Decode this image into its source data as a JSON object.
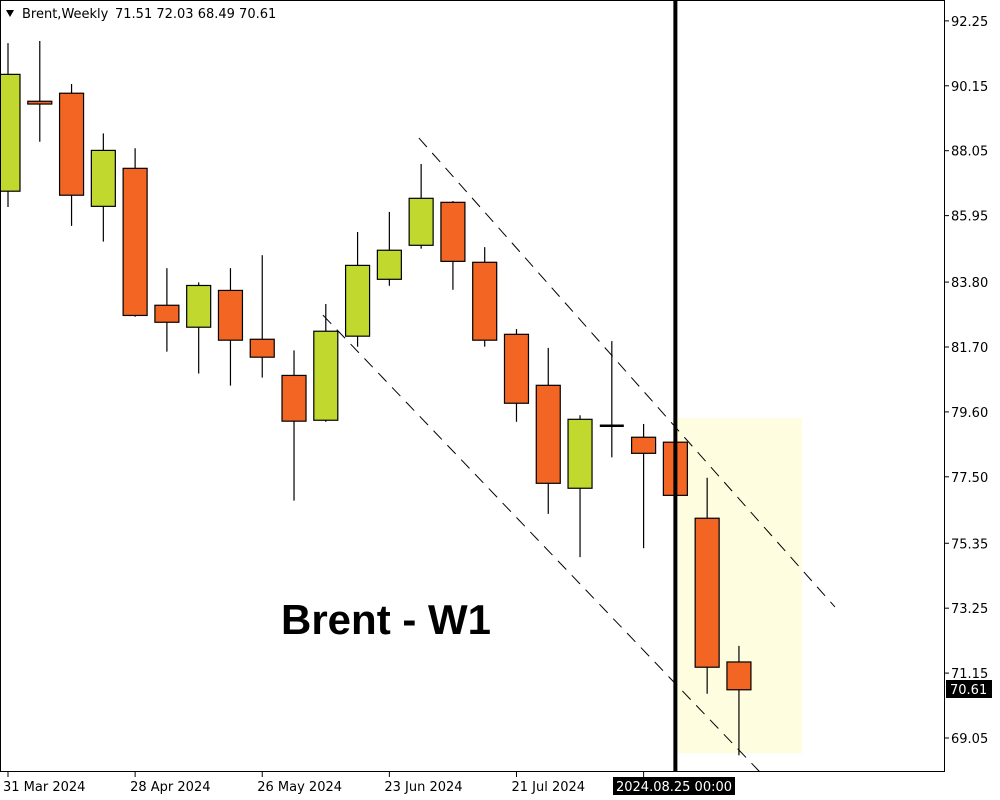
{
  "header": {
    "menu_icon": "triangle-down-icon",
    "symbol_label": "Brent,Weekly",
    "ohlc_text": "71.51 72.03 68.49 70.61"
  },
  "annotation_text": "Brent - W1",
  "current_price_label": "70.61",
  "vline_label": "2024.08.25 00:00",
  "colors": {
    "bull": "#C1D82F",
    "bear": "#F26522",
    "outline": "#000000",
    "highlight": "#FFFDE0",
    "price_tag_bg": "#000000"
  },
  "chart_data": {
    "type": "candlestick",
    "title": "Brent,Weekly",
    "timeframe": "weekly",
    "ylim": [
      68.0,
      92.8
    ],
    "y_ticks": [
      "92.25",
      "90.15",
      "88.05",
      "85.95",
      "83.80",
      "81.70",
      "79.60",
      "77.50",
      "75.35",
      "73.25",
      "71.15",
      "69.05"
    ],
    "x_ticks": [
      {
        "date": "2024-03-31",
        "label": "31 Mar 2024"
      },
      {
        "date": "2024-04-28",
        "label": "28 Apr 2024"
      },
      {
        "date": "2024-05-26",
        "label": "26 May 2024"
      },
      {
        "date": "2024-06-23",
        "label": "23 Jun 2024"
      },
      {
        "date": "2024-07-21",
        "label": "21 Jul 2024"
      }
    ],
    "candles": [
      {
        "date": "2024-03-31",
        "o": 86.74,
        "h": 91.53,
        "l": 86.23,
        "c": 90.52
      },
      {
        "date": "2024-04-07",
        "o": 89.65,
        "h": 91.6,
        "l": 88.34,
        "c": 89.56
      },
      {
        "date": "2024-04-14",
        "o": 89.91,
        "h": 90.21,
        "l": 85.62,
        "c": 86.61
      },
      {
        "date": "2024-04-21",
        "o": 86.25,
        "h": 88.61,
        "l": 85.11,
        "c": 88.06
      },
      {
        "date": "2024-04-28",
        "o": 87.48,
        "h": 88.13,
        "l": 82.68,
        "c": 82.72
      },
      {
        "date": "2024-05-05",
        "o": 83.05,
        "h": 84.25,
        "l": 81.55,
        "c": 82.5
      },
      {
        "date": "2024-05-12",
        "o": 82.34,
        "h": 83.79,
        "l": 80.84,
        "c": 83.69
      },
      {
        "date": "2024-05-19",
        "o": 83.53,
        "h": 84.25,
        "l": 80.45,
        "c": 81.92
      },
      {
        "date": "2024-05-26",
        "o": 81.95,
        "h": 84.67,
        "l": 80.71,
        "c": 81.37
      },
      {
        "date": "2024-06-02",
        "o": 80.78,
        "h": 81.59,
        "l": 76.73,
        "c": 79.3
      },
      {
        "date": "2024-06-09",
        "o": 79.33,
        "h": 83.09,
        "l": 79.28,
        "c": 82.21
      },
      {
        "date": "2024-06-16",
        "o": 82.05,
        "h": 85.42,
        "l": 81.71,
        "c": 84.34
      },
      {
        "date": "2024-06-23",
        "o": 83.89,
        "h": 86.07,
        "l": 83.68,
        "c": 84.83
      },
      {
        "date": "2024-06-30",
        "o": 84.99,
        "h": 87.62,
        "l": 84.88,
        "c": 86.51
      },
      {
        "date": "2024-07-07",
        "o": 86.38,
        "h": 86.42,
        "l": 83.55,
        "c": 84.47
      },
      {
        "date": "2024-07-14",
        "o": 84.44,
        "h": 84.93,
        "l": 81.71,
        "c": 81.92
      },
      {
        "date": "2024-07-21",
        "o": 82.11,
        "h": 82.28,
        "l": 79.28,
        "c": 79.88
      },
      {
        "date": "2024-07-28",
        "o": 80.46,
        "h": 81.67,
        "l": 76.3,
        "c": 77.29
      },
      {
        "date": "2024-08-04",
        "o": 77.13,
        "h": 79.49,
        "l": 74.9,
        "c": 79.36
      },
      {
        "date": "2024-08-11",
        "o": 79.15,
        "h": 81.89,
        "l": 78.13,
        "c": 79.15
      },
      {
        "date": "2024-08-18",
        "o": 78.78,
        "h": 79.21,
        "l": 75.19,
        "c": 78.26
      },
      {
        "date": "2024-08-25",
        "o": 78.62,
        "h": 78.7,
        "l": 76.85,
        "c": 76.9
      },
      {
        "date": "2024-09-01",
        "o": 76.16,
        "h": 77.47,
        "l": 70.48,
        "c": 71.34
      },
      {
        "date": "2024-09-08",
        "o": 71.51,
        "h": 72.03,
        "l": 68.49,
        "c": 70.61
      }
    ],
    "trendlines": [
      {
        "style": "dashed",
        "from": {
          "week": 12.93,
          "price": 88.46
        },
        "to": {
          "week": 26.02,
          "price": 73.29
        }
      },
      {
        "style": "dashed",
        "from": {
          "week": 9.91,
          "price": 82.73
        },
        "to": {
          "week": 23.66,
          "price": 67.95
        }
      }
    ],
    "vertical_line": {
      "date": "2024-08-25",
      "week": 21
    },
    "highlight_zone": {
      "from_week": 21.05,
      "to_week": 24.99,
      "price_top": 79.4,
      "price_bottom": 68.56
    },
    "current_price": 70.61,
    "grid": false
  }
}
